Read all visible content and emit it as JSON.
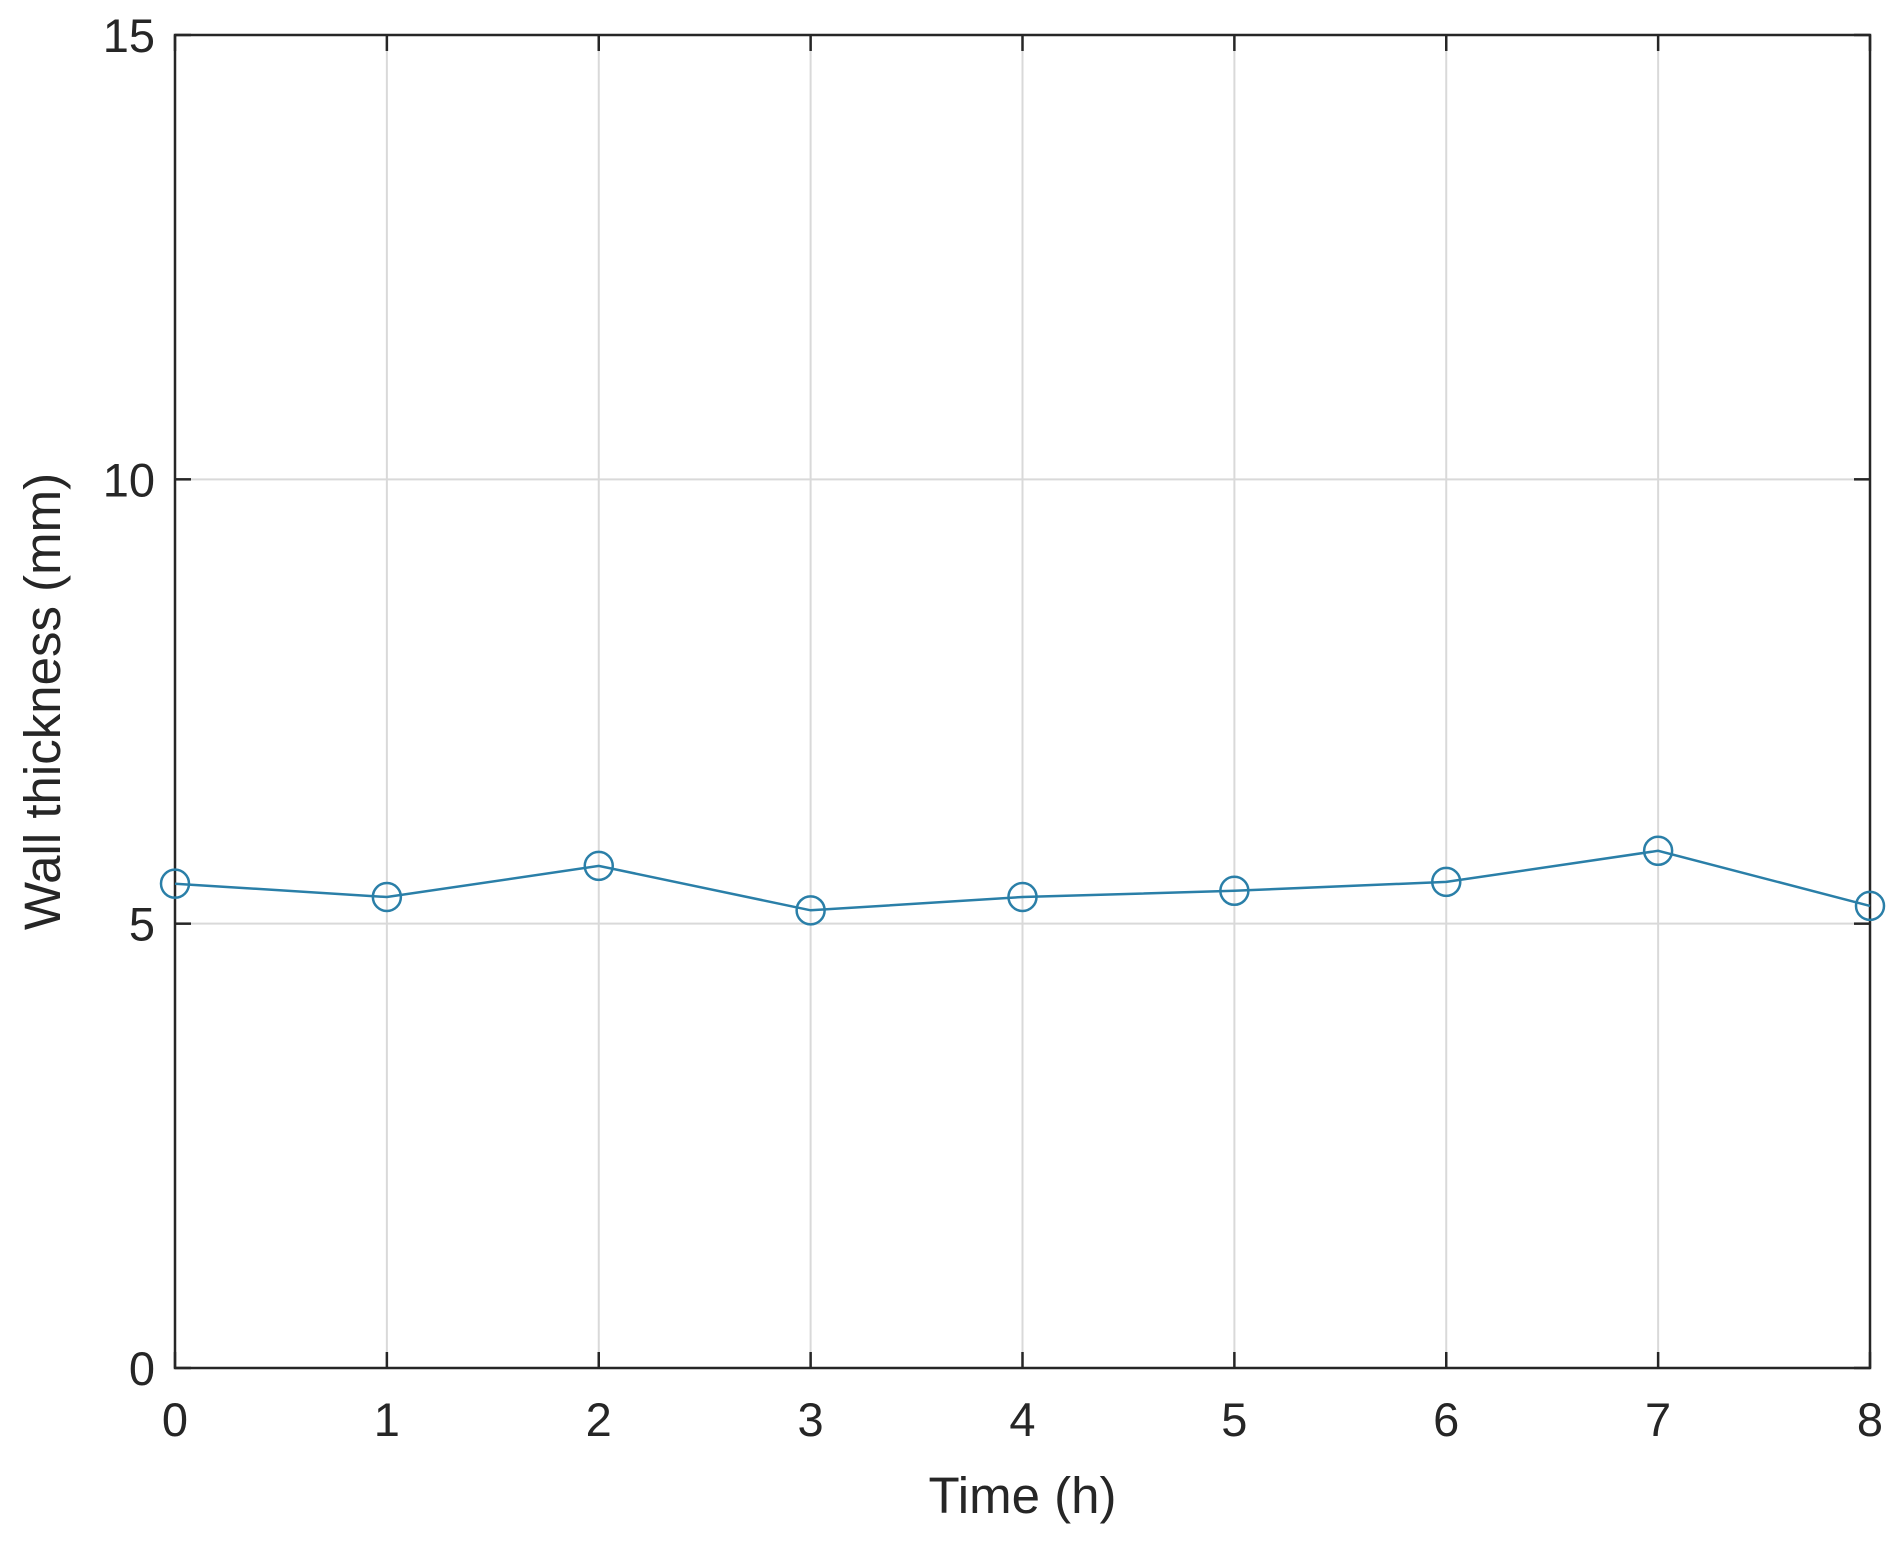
{
  "chart_data": {
    "type": "line",
    "title": "",
    "xlabel": "Time (h)",
    "ylabel": "Wall thickness (mm)",
    "xlim": [
      0,
      8
    ],
    "ylim": [
      0,
      15
    ],
    "xticks": [
      "0",
      "1",
      "2",
      "3",
      "4",
      "5",
      "6",
      "7",
      "8"
    ],
    "yticks": [
      "0",
      "5",
      "10",
      "15"
    ],
    "grid": true,
    "legend": "none",
    "series": [
      {
        "x": [
          0,
          1,
          2,
          3,
          4,
          5,
          6,
          7,
          8
        ],
        "values": [
          5.45,
          5.3,
          5.65,
          5.15,
          5.3,
          5.37,
          5.47,
          5.82,
          5.2
        ],
        "color": "#2a7fa8",
        "marker": "circle"
      }
    ]
  }
}
